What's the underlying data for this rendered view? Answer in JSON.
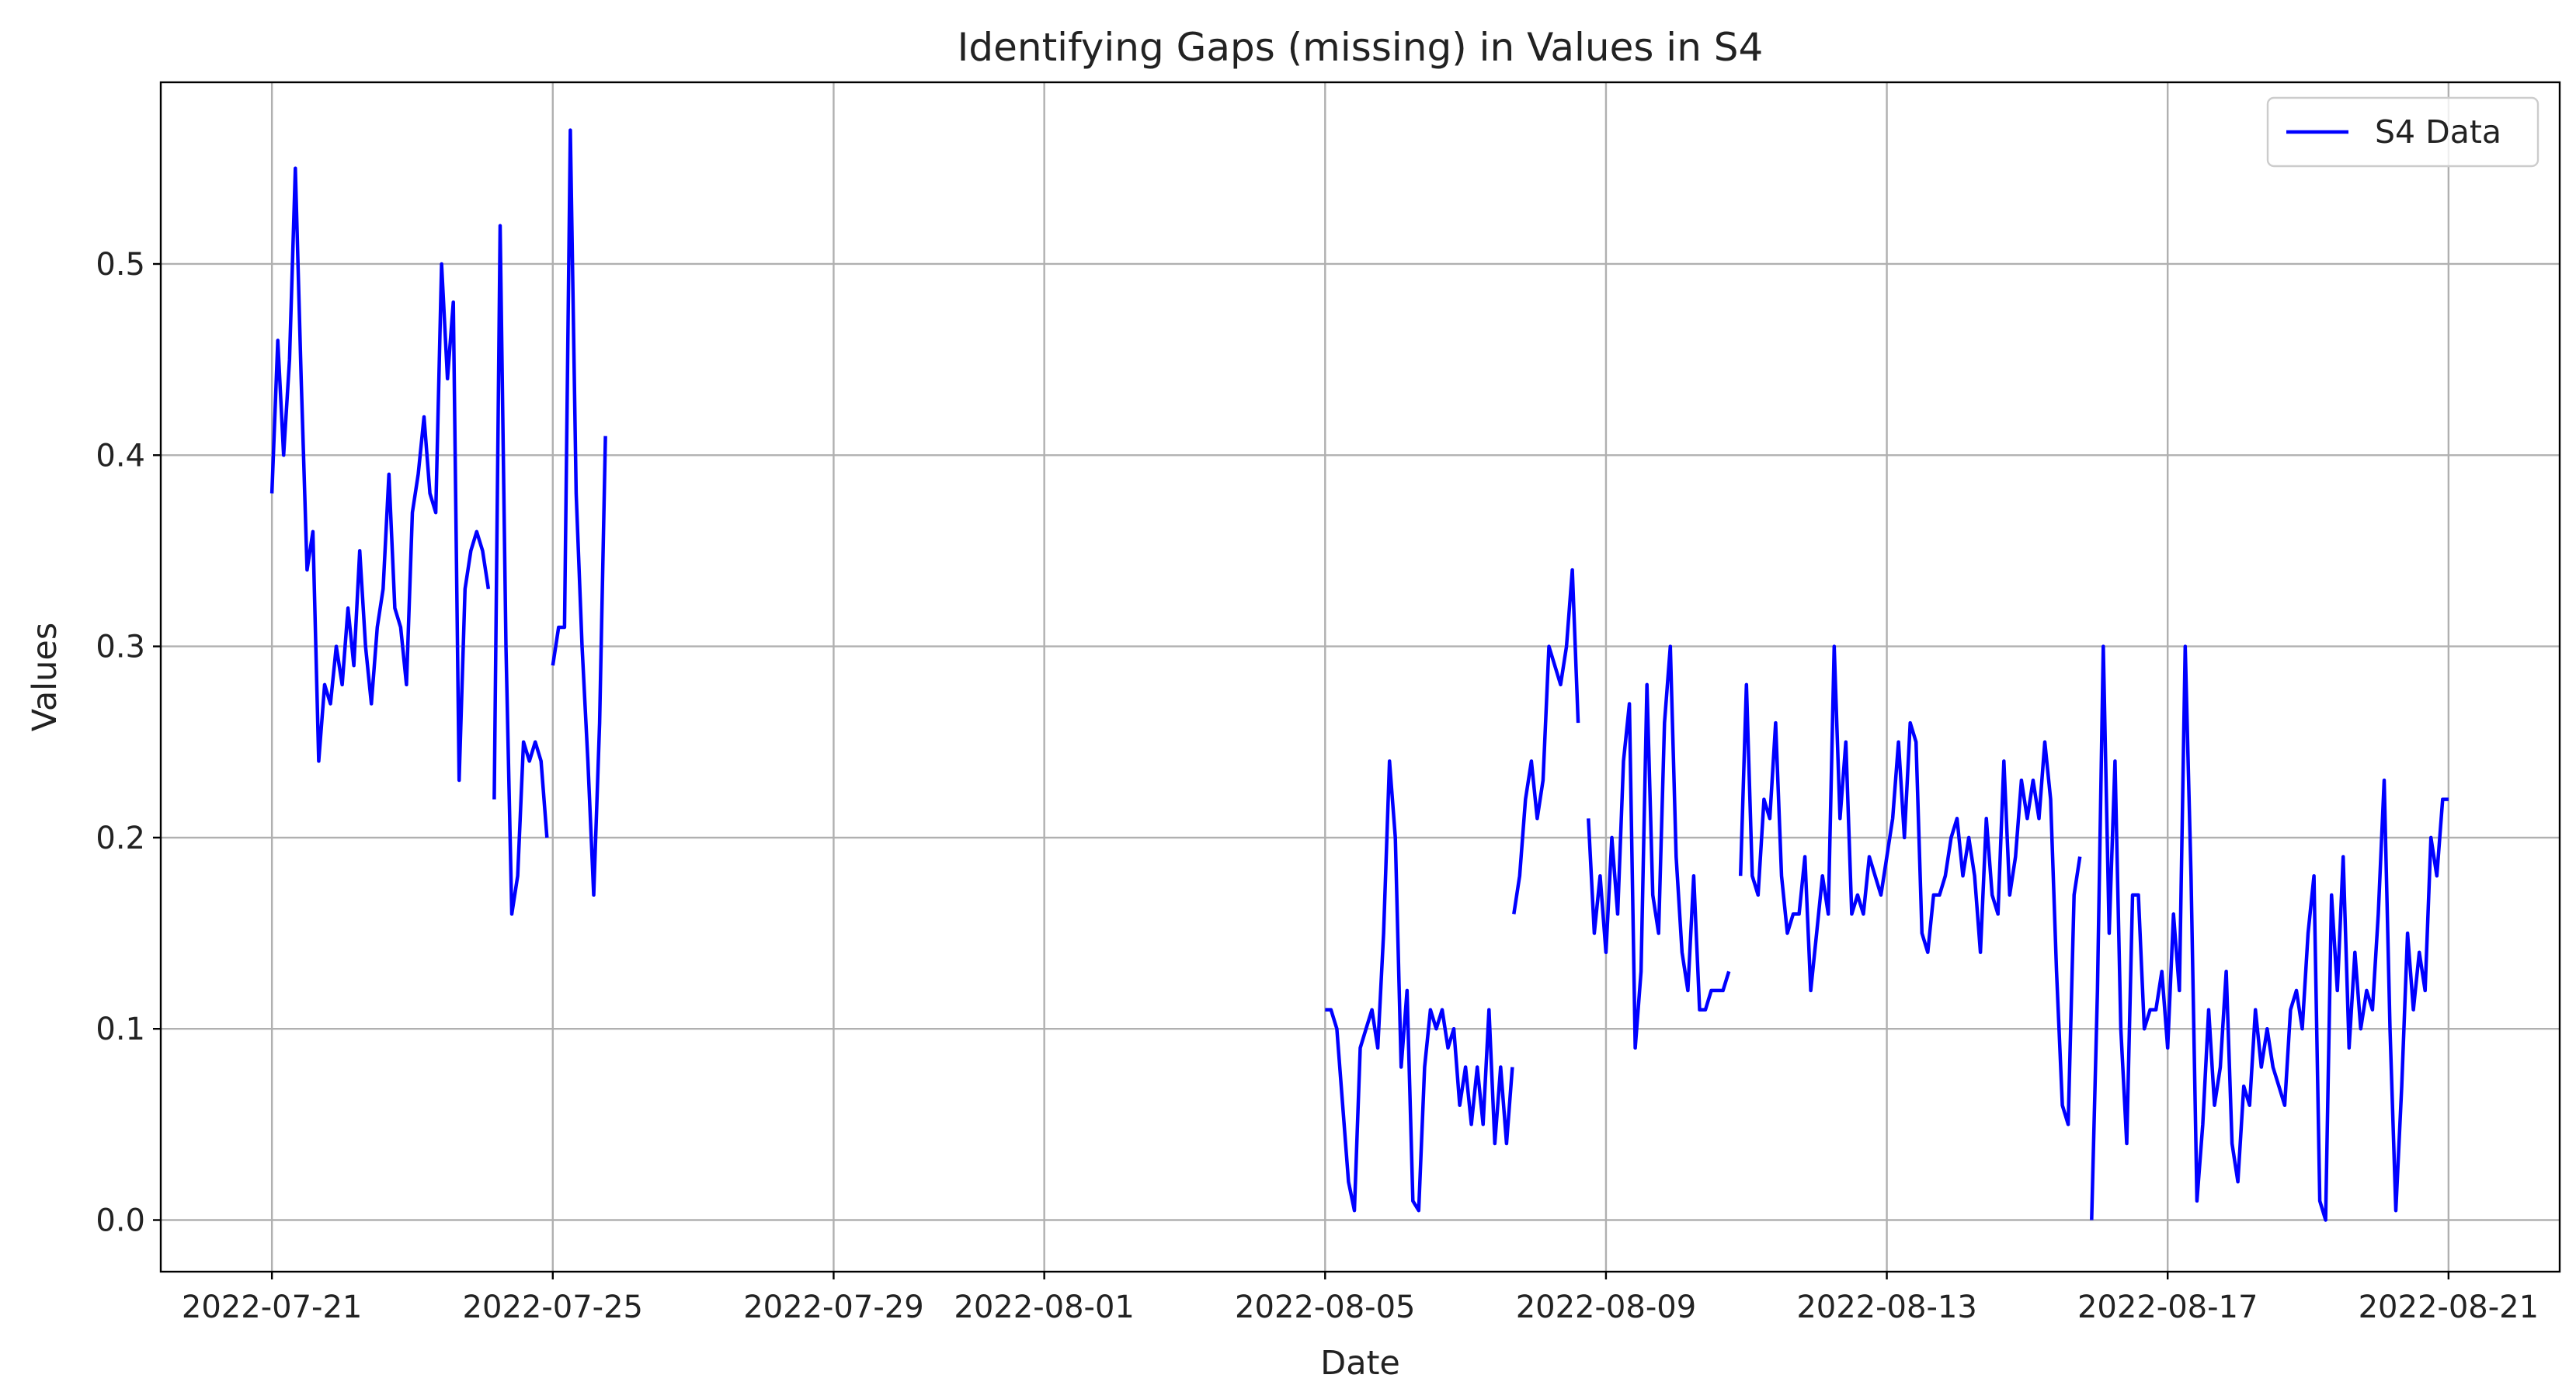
{
  "chart_data": {
    "type": "line",
    "title": "Identifying Gaps (missing) in Values in S4",
    "xlabel": "Date",
    "ylabel": "Values",
    "grid": true,
    "legend_placement": "top-right",
    "xlim": [
      "2022-07-19 10:00",
      "2022-08-22 14:00"
    ],
    "ylim": [
      -0.027,
      0.595
    ],
    "x_ticks": [
      "2022-07-21",
      "2022-07-25",
      "2022-07-29",
      "2022-08-01",
      "2022-08-05",
      "2022-08-09",
      "2022-08-13",
      "2022-08-17",
      "2022-08-21"
    ],
    "y_ticks": [
      "0.0",
      "0.1",
      "0.2",
      "0.3",
      "0.4",
      "0.5"
    ],
    "series": [
      {
        "name": "S4 Data",
        "color": "#0000ff",
        "segments": [
          {
            "x": [
              "2022-07-21 00:00",
              "2022-07-21 02:00",
              "2022-07-21 04:00",
              "2022-07-21 06:00",
              "2022-07-21 08:00",
              "2022-07-21 10:00",
              "2022-07-21 12:00",
              "2022-07-21 14:00",
              "2022-07-21 16:00",
              "2022-07-21 18:00",
              "2022-07-21 20:00",
              "2022-07-21 22:00",
              "2022-07-22 00:00",
              "2022-07-22 02:00",
              "2022-07-22 04:00",
              "2022-07-22 06:00",
              "2022-07-22 08:00",
              "2022-07-22 10:00",
              "2022-07-22 12:00",
              "2022-07-22 14:00",
              "2022-07-22 16:00",
              "2022-07-22 18:00",
              "2022-07-22 20:00",
              "2022-07-22 22:00",
              "2022-07-23 00:00",
              "2022-07-23 02:00",
              "2022-07-23 04:00",
              "2022-07-23 06:00",
              "2022-07-23 08:00",
              "2022-07-23 10:00",
              "2022-07-23 12:00",
              "2022-07-23 14:00",
              "2022-07-23 16:00",
              "2022-07-23 18:00",
              "2022-07-23 20:00",
              "2022-07-23 22:00",
              "2022-07-24 00:00",
              "2022-07-24 02:00"
            ],
            "y": [
              0.38,
              0.46,
              0.4,
              0.45,
              0.55,
              0.44,
              0.34,
              0.36,
              0.24,
              0.28,
              0.27,
              0.3,
              0.28,
              0.32,
              0.29,
              0.35,
              0.3,
              0.27,
              0.31,
              0.33,
              0.39,
              0.32,
              0.31,
              0.28,
              0.37,
              0.39,
              0.42,
              0.38,
              0.37,
              0.5,
              0.44,
              0.48,
              0.23,
              0.33,
              0.35,
              0.36,
              0.35,
              0.33
            ]
          },
          {
            "x": [
              "2022-07-24 04:00",
              "2022-07-24 06:00",
              "2022-07-24 08:00",
              "2022-07-24 10:00",
              "2022-07-24 12:00",
              "2022-07-24 14:00",
              "2022-07-24 16:00",
              "2022-07-24 18:00",
              "2022-07-24 20:00",
              "2022-07-24 22:00"
            ],
            "y": [
              0.22,
              0.52,
              0.3,
              0.16,
              0.18,
              0.25,
              0.24,
              0.25,
              0.24,
              0.2
            ]
          },
          {
            "x": [
              "2022-07-25 00:00",
              "2022-07-25 02:00",
              "2022-07-25 04:00",
              "2022-07-25 06:00",
              "2022-07-25 08:00",
              "2022-07-25 10:00",
              "2022-07-25 12:00",
              "2022-07-25 14:00",
              "2022-07-25 16:00",
              "2022-07-25 18:00"
            ],
            "y": [
              0.29,
              0.31,
              0.31,
              0.57,
              0.38,
              0.3,
              0.24,
              0.17,
              0.26,
              0.41
            ]
          },
          {
            "x": [
              "2022-08-05 00:00",
              "2022-08-05 02:00",
              "2022-08-05 04:00",
              "2022-08-05 06:00",
              "2022-08-05 08:00",
              "2022-08-05 10:00",
              "2022-08-05 12:00",
              "2022-08-05 14:00",
              "2022-08-05 16:00",
              "2022-08-05 18:00",
              "2022-08-05 20:00",
              "2022-08-05 22:00",
              "2022-08-06 00:00",
              "2022-08-06 02:00",
              "2022-08-06 04:00",
              "2022-08-06 06:00",
              "2022-08-06 08:00",
              "2022-08-06 10:00",
              "2022-08-06 12:00",
              "2022-08-06 14:00",
              "2022-08-06 16:00",
              "2022-08-06 18:00",
              "2022-08-06 20:00",
              "2022-08-06 22:00",
              "2022-08-07 00:00",
              "2022-08-07 02:00",
              "2022-08-07 04:00",
              "2022-08-07 06:00",
              "2022-08-07 08:00",
              "2022-08-07 10:00",
              "2022-08-07 12:00",
              "2022-08-07 14:00",
              "2022-08-07 16:00"
            ],
            "y": [
              0.11,
              0.11,
              0.1,
              0.06,
              0.02,
              0.005,
              0.09,
              0.1,
              0.11,
              0.09,
              0.15,
              0.24,
              0.2,
              0.08,
              0.12,
              0.01,
              0.005,
              0.08,
              0.11,
              0.1,
              0.11,
              0.09,
              0.1,
              0.06,
              0.08,
              0.05,
              0.08,
              0.05,
              0.11,
              0.04,
              0.08,
              0.04,
              0.08
            ]
          },
          {
            "x": [
              "2022-08-07 16:30",
              "2022-08-07 18:30",
              "2022-08-07 20:30",
              "2022-08-07 22:30",
              "2022-08-08 00:30",
              "2022-08-08 02:30",
              "2022-08-08 04:30",
              "2022-08-08 06:30",
              "2022-08-08 08:30",
              "2022-08-08 10:30",
              "2022-08-08 12:30",
              "2022-08-08 14:30"
            ],
            "y": [
              0.16,
              0.18,
              0.22,
              0.24,
              0.21,
              0.23,
              0.3,
              0.29,
              0.28,
              0.3,
              0.34,
              0.26
            ]
          },
          {
            "x": [
              "2022-08-08 18:00",
              "2022-08-08 20:00",
              "2022-08-08 22:00",
              "2022-08-09 00:00",
              "2022-08-09 02:00",
              "2022-08-09 04:00",
              "2022-08-09 06:00",
              "2022-08-09 08:00",
              "2022-08-09 10:00",
              "2022-08-09 12:00",
              "2022-08-09 14:00",
              "2022-08-09 16:00",
              "2022-08-09 18:00",
              "2022-08-09 20:00",
              "2022-08-09 22:00",
              "2022-08-10 00:00",
              "2022-08-10 02:00",
              "2022-08-10 04:00",
              "2022-08-10 06:00",
              "2022-08-10 08:00",
              "2022-08-10 10:00",
              "2022-08-10 12:00",
              "2022-08-10 14:00",
              "2022-08-10 16:00",
              "2022-08-10 18:00"
            ],
            "y": [
              0.21,
              0.15,
              0.18,
              0.14,
              0.2,
              0.16,
              0.24,
              0.27,
              0.09,
              0.13,
              0.28,
              0.17,
              0.15,
              0.26,
              0.3,
              0.19,
              0.14,
              0.12,
              0.18,
              0.11,
              0.11,
              0.12,
              0.12,
              0.12,
              0.13
            ]
          },
          {
            "x": [
              "2022-08-10 22:00",
              "2022-08-11 00:00",
              "2022-08-11 02:00",
              "2022-08-11 04:00",
              "2022-08-11 06:00",
              "2022-08-11 08:00",
              "2022-08-11 10:00",
              "2022-08-11 12:00",
              "2022-08-11 14:00",
              "2022-08-11 16:00",
              "2022-08-11 18:00",
              "2022-08-11 20:00",
              "2022-08-11 22:00",
              "2022-08-12 00:00",
              "2022-08-12 02:00",
              "2022-08-12 04:00",
              "2022-08-12 06:00",
              "2022-08-12 08:00",
              "2022-08-12 10:00",
              "2022-08-12 12:00",
              "2022-08-12 14:00",
              "2022-08-12 16:00",
              "2022-08-12 18:00",
              "2022-08-12 20:00",
              "2022-08-12 22:00",
              "2022-08-13 00:00",
              "2022-08-13 02:00",
              "2022-08-13 04:00",
              "2022-08-13 06:00",
              "2022-08-13 08:00",
              "2022-08-13 10:00",
              "2022-08-13 12:00",
              "2022-08-13 14:00",
              "2022-08-13 16:00",
              "2022-08-13 18:00",
              "2022-08-13 20:00",
              "2022-08-13 22:00",
              "2022-08-14 00:00",
              "2022-08-14 02:00",
              "2022-08-14 04:00",
              "2022-08-14 06:00",
              "2022-08-14 08:00",
              "2022-08-14 10:00",
              "2022-08-14 12:00",
              "2022-08-14 14:00",
              "2022-08-14 16:00",
              "2022-08-14 18:00",
              "2022-08-14 20:00",
              "2022-08-14 22:00",
              "2022-08-15 00:00",
              "2022-08-15 02:00",
              "2022-08-15 04:00",
              "2022-08-15 06:00",
              "2022-08-15 08:00",
              "2022-08-15 10:00",
              "2022-08-15 12:00",
              "2022-08-15 14:00",
              "2022-08-15 16:00",
              "2022-08-15 18:00"
            ],
            "y": [
              0.18,
              0.28,
              0.18,
              0.17,
              0.22,
              0.21,
              0.26,
              0.18,
              0.15,
              0.16,
              0.16,
              0.19,
              0.12,
              0.15,
              0.18,
              0.16,
              0.3,
              0.21,
              0.25,
              0.16,
              0.17,
              0.16,
              0.19,
              0.18,
              0.17,
              0.19,
              0.21,
              0.25,
              0.2,
              0.26,
              0.25,
              0.15,
              0.14,
              0.17,
              0.17,
              0.18,
              0.2,
              0.21,
              0.18,
              0.2,
              0.18,
              0.14,
              0.21,
              0.17,
              0.16,
              0.24,
              0.17,
              0.19,
              0.23,
              0.21,
              0.23,
              0.21,
              0.25,
              0.22,
              0.13,
              0.06,
              0.05,
              0.17,
              0.19
            ]
          },
          {
            "x": [
              "2022-08-15 22:00",
              "2022-08-16 00:00",
              "2022-08-16 02:00",
              "2022-08-16 04:00",
              "2022-08-16 06:00",
              "2022-08-16 08:00",
              "2022-08-16 10:00",
              "2022-08-16 12:00",
              "2022-08-16 14:00",
              "2022-08-16 16:00",
              "2022-08-16 18:00",
              "2022-08-16 20:00",
              "2022-08-16 22:00",
              "2022-08-17 00:00",
              "2022-08-17 02:00",
              "2022-08-17 04:00",
              "2022-08-17 06:00",
              "2022-08-17 08:00",
              "2022-08-17 10:00",
              "2022-08-17 12:00",
              "2022-08-17 14:00",
              "2022-08-17 16:00",
              "2022-08-17 18:00",
              "2022-08-17 20:00",
              "2022-08-17 22:00",
              "2022-08-18 00:00",
              "2022-08-18 02:00",
              "2022-08-18 04:00",
              "2022-08-18 06:00",
              "2022-08-18 08:00",
              "2022-08-18 10:00",
              "2022-08-18 12:00",
              "2022-08-18 14:00",
              "2022-08-18 16:00",
              "2022-08-18 18:00",
              "2022-08-18 20:00",
              "2022-08-18 22:00",
              "2022-08-19 00:00",
              "2022-08-19 02:00",
              "2022-08-19 04:00",
              "2022-08-19 06:00",
              "2022-08-19 08:00",
              "2022-08-19 10:00",
              "2022-08-19 12:00",
              "2022-08-19 14:00",
              "2022-08-19 16:00",
              "2022-08-19 18:00",
              "2022-08-19 20:00",
              "2022-08-19 22:00",
              "2022-08-20 00:00",
              "2022-08-20 02:00",
              "2022-08-20 04:00",
              "2022-08-20 06:00",
              "2022-08-20 08:00",
              "2022-08-20 10:00",
              "2022-08-20 12:00",
              "2022-08-20 14:00",
              "2022-08-20 16:00",
              "2022-08-20 18:00",
              "2022-08-20 20:00",
              "2022-08-20 22:00",
              "2022-08-21 00:00"
            ],
            "y": [
              0.0,
              0.12,
              0.3,
              0.15,
              0.24,
              0.1,
              0.04,
              0.17,
              0.17,
              0.1,
              0.11,
              0.11,
              0.13,
              0.09,
              0.16,
              0.12,
              0.3,
              0.18,
              0.01,
              0.05,
              0.11,
              0.06,
              0.08,
              0.13,
              0.04,
              0.02,
              0.07,
              0.06,
              0.11,
              0.08,
              0.1,
              0.08,
              0.07,
              0.06,
              0.11,
              0.12,
              0.1,
              0.15,
              0.18,
              0.01,
              0.0,
              0.17,
              0.12,
              0.19,
              0.09,
              0.14,
              0.1,
              0.12,
              0.11,
              0.16,
              0.23,
              0.1,
              0.005,
              0.07,
              0.15,
              0.11,
              0.14,
              0.12,
              0.2,
              0.18,
              0.22,
              0.22
            ]
          }
        ]
      }
    ]
  }
}
